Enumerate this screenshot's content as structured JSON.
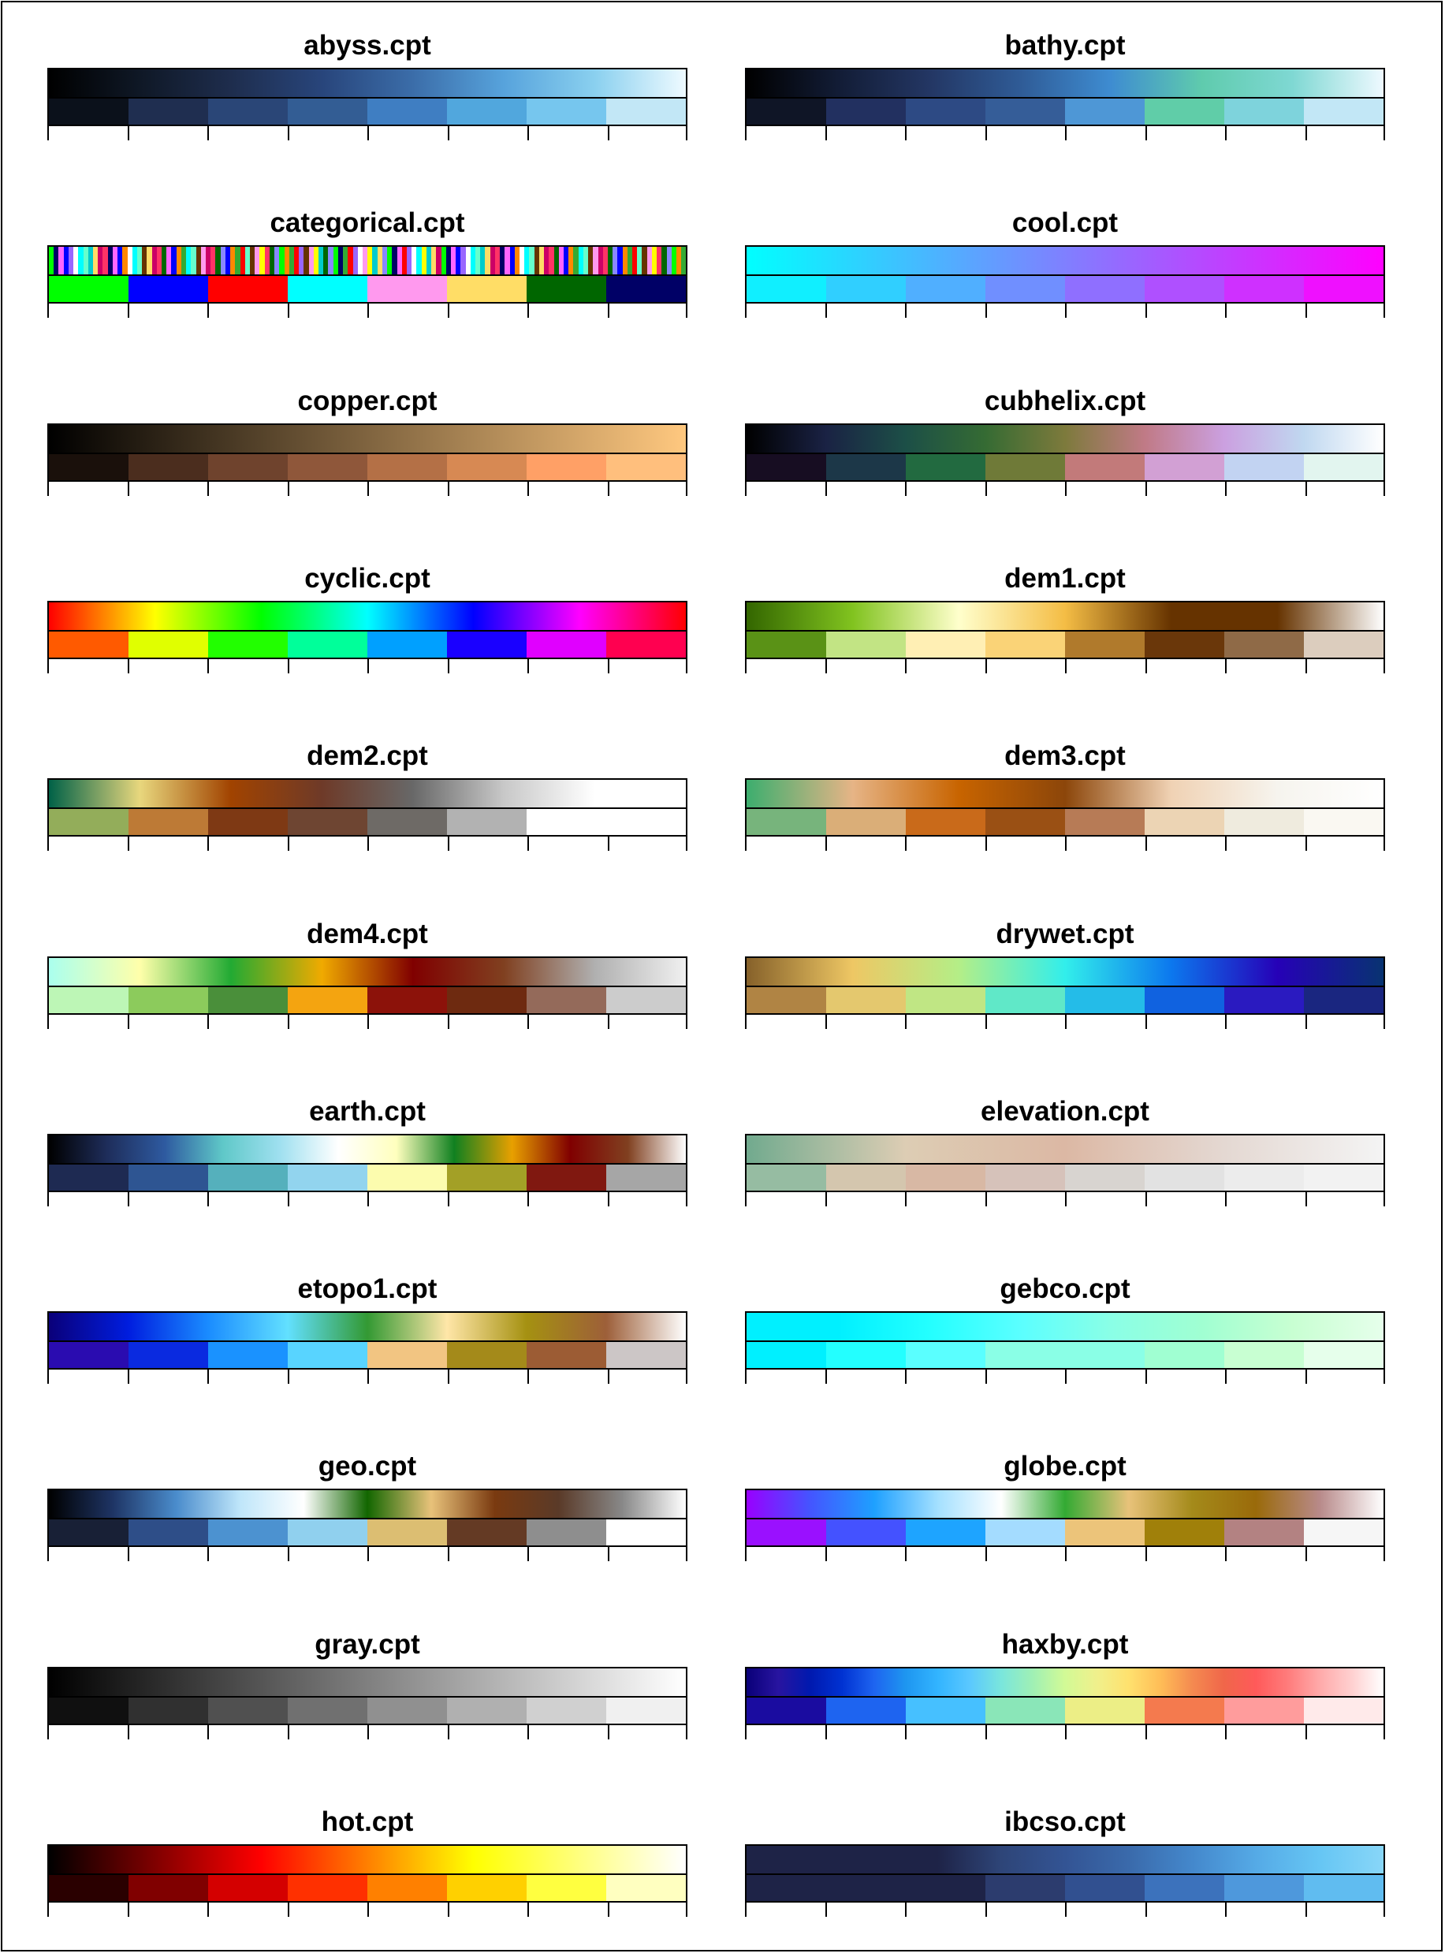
{
  "palettes": [
    {
      "name": "abyss.cpt",
      "gradient": [
        "#000000",
        "#0f1826",
        "#1e2d4d",
        "#28457b",
        "#3b6da9",
        "#57a3dc",
        "#8ad0ef",
        "#eefaff"
      ],
      "discrete": [
        "#0b111b",
        "#1f2e50",
        "#2a4677",
        "#335d94",
        "#3f7ec2",
        "#51a7dd",
        "#76c6ee",
        "#c2e7f6"
      ]
    },
    {
      "name": "bathy.cpt",
      "gradient": [
        "#000000",
        "#121c35",
        "#233663",
        "#2f5b96",
        "#3e8cd1",
        "#5fcbad",
        "#7fd8d3",
        "#eef9ff"
      ],
      "discrete": [
        "#0f1526",
        "#223060",
        "#2d4a84",
        "#355d98",
        "#4e97d6",
        "#60cda8",
        "#7ed3dc",
        "#c2e7f6"
      ]
    },
    {
      "name": "categorical.cpt",
      "gradient": [],
      "stripes": [
        "#00ff00",
        "#0000ff",
        "#ff0000",
        "#00ffff",
        "#ff99ee",
        "#ffdd66",
        "#006600",
        "#000066",
        "#ff8800",
        "#9966ff",
        "#66ffcc",
        "#ffff00",
        "#cc0066",
        "#8888ff",
        "#ff66ff",
        "#33aa33",
        "#ffffff",
        "#663300",
        "#00cccc",
        "#ff3366"
      ],
      "discrete": [
        "#00ff00",
        "#0000ff",
        "#ff0000",
        "#00ffff",
        "#ff99ee",
        "#ffdd66",
        "#006600",
        "#000066"
      ]
    },
    {
      "name": "cool.cpt",
      "gradient": [
        "#00ffff",
        "#ff00ff"
      ],
      "discrete": [
        "#10efff",
        "#30cfff",
        "#50afff",
        "#708fff",
        "#8f6fff",
        "#af50ff",
        "#cf30ff",
        "#ef10ff"
      ]
    },
    {
      "name": "copper.cpt",
      "gradient": [
        "#000000",
        "#ffc87f"
      ],
      "discrete": [
        "#1a100b",
        "#4b2d1e",
        "#6f432d",
        "#8f573a",
        "#b47046",
        "#d78953",
        "#ffa066",
        "#ffbf7d"
      ]
    },
    {
      "name": "cubhelix.cpt",
      "gradient": [
        "#000000",
        "#1a2244",
        "#1c4f47",
        "#356b33",
        "#7d7a3c",
        "#c07a86",
        "#cba0e0",
        "#c0d8f0",
        "#ffffff"
      ],
      "discrete": [
        "#170d22",
        "#1c3748",
        "#226a40",
        "#6f7a38",
        "#c27a7a",
        "#d2a0d4",
        "#c2d3f2",
        "#e2f5ef"
      ]
    },
    {
      "name": "cyclic.cpt",
      "gradient": [
        "#ff0000",
        "#ffff00",
        "#00ff00",
        "#00ffff",
        "#0000ff",
        "#ff00ff",
        "#ff0000"
      ],
      "discrete": [
        "#ff5a00",
        "#e0ff00",
        "#22ff00",
        "#00ff9a",
        "#00a0ff",
        "#1a00ff",
        "#e000ff",
        "#ff0050"
      ]
    },
    {
      "name": "dem1.cpt",
      "gradient": [
        "#336600",
        "#81c31f",
        "#ffffcc",
        "#f4bd45",
        "#663300",
        "#663300",
        "#ffffff"
      ],
      "discrete": [
        "#5a9216",
        "#c2e484",
        "#ffefb4",
        "#fad377",
        "#b07a2c",
        "#6a370a",
        "#8f6a47",
        "#dccdbe"
      ]
    },
    {
      "name": "dem2.cpt",
      "gradient": [
        "#006147",
        "#e8d77d",
        "#a14300",
        "#6e3a28",
        "#686868",
        "#c8c8c8",
        "#ffffff",
        "#ffffff"
      ],
      "discrete": [
        "#93ad5a",
        "#bd7a36",
        "#7e3914",
        "#6e4532",
        "#6e6a66",
        "#b2b2b2",
        "#ffffff",
        "#ffffff"
      ]
    },
    {
      "name": "dem3.cpt",
      "gradient": [
        "#3cae6e",
        "#e6b486",
        "#c86400",
        "#8c460a",
        "#f0d2b4",
        "#f6f4ee",
        "#ffffff"
      ],
      "discrete": [
        "#77b47c",
        "#daae78",
        "#c96a1a",
        "#9a5014",
        "#b77b56",
        "#ecd4b4",
        "#efebde",
        "#faf8f2"
      ]
    },
    {
      "name": "dem4.cpt",
      "gradient": [
        "#aaffee",
        "#ffffaa",
        "#22aa33",
        "#f0aa00",
        "#800000",
        "#804020",
        "#b0b0b0",
        "#f0f0f0"
      ],
      "discrete": [
        "#bdf6b6",
        "#8ccb5c",
        "#4a8f3a",
        "#f4a410",
        "#8c120a",
        "#6e2a10",
        "#946a5a",
        "#cccccc"
      ]
    },
    {
      "name": "drywet.cpt",
      "gradient": [
        "#86612a",
        "#eec764",
        "#b4ee87",
        "#32eeeb",
        "#0c78ee",
        "#2601b7",
        "#083371"
      ],
      "discrete": [
        "#b08444",
        "#e4c86e",
        "#c0e684",
        "#60e8c8",
        "#24bce8",
        "#1062e0",
        "#2a1ac0",
        "#1a2680"
      ]
    },
    {
      "name": "earth.cpt",
      "gradient": [
        "#000000",
        "#1e2d5a",
        "#2e5aa0",
        "#5fc8c8",
        "#a0e0f0",
        "#ffffff",
        "#ffffbe",
        "#108020",
        "#e8a000",
        "#800000",
        "#804020",
        "#ffffff"
      ],
      "discrete": [
        "#1e2a52",
        "#2e5592",
        "#55b0bc",
        "#92d4ee",
        "#fcfcae",
        "#a3a026",
        "#801810",
        "#a6a6a6"
      ]
    },
    {
      "name": "elevation.cpt",
      "gradient": [
        "#71aa8e",
        "#ddcdb4",
        "#dcb8a4",
        "#e4d8d2",
        "#f4f4f4"
      ],
      "discrete": [
        "#96bca2",
        "#d4c6ae",
        "#d8b8a4",
        "#d6c2ba",
        "#d8d4d0",
        "#e2e2e2",
        "#ececec",
        "#f2f2f2"
      ]
    },
    {
      "name": "etopo1.cpt",
      "gradient": [
        "#0a0079",
        "#001ddf",
        "#1a8cff",
        "#62e0ff",
        "#339933",
        "#ffe6a8",
        "#a59111",
        "#9d5f39",
        "#ffffff"
      ],
      "discrete": [
        "#2a0cb0",
        "#0a2ae0",
        "#1a92ff",
        "#58d4ff",
        "#f2c582",
        "#a48a1a",
        "#9c5c34",
        "#ccc6c6"
      ]
    },
    {
      "name": "gebco.cpt",
      "gradient": [
        "#00f0ff",
        "#00f0ff",
        "#23ffff",
        "#5affff",
        "#8affe6",
        "#a0ffd2",
        "#c8ffd2",
        "#e6ffeb"
      ],
      "discrete": [
        "#00f0ff",
        "#23ffff",
        "#5affff",
        "#8affe6",
        "#8affe6",
        "#a0ffd2",
        "#c8ffd2",
        "#e6ffeb"
      ]
    },
    {
      "name": "geo.cpt",
      "gradient": [
        "#000000",
        "#1e3464",
        "#4a8ccc",
        "#bfe6fa",
        "#ffffff",
        "#126600",
        "#e8c27a",
        "#7a3a10",
        "#5a3a28",
        "#888888",
        "#ffffff"
      ],
      "discrete": [
        "#182036",
        "#2e4e88",
        "#4c92d0",
        "#90d0ee",
        "#dcbe72",
        "#643a24",
        "#8e8e8e",
        "#ffffff"
      ]
    },
    {
      "name": "globe.cpt",
      "gradient": [
        "#9900ff",
        "#4455ff",
        "#1ea0ff",
        "#a4e0ff",
        "#ffffff",
        "#33aa33",
        "#e8c27a",
        "#a48a1a",
        "#9a6a0a",
        "#b88a8a",
        "#ffffff"
      ],
      "discrete": [
        "#9a10ff",
        "#4452ff",
        "#1ea4ff",
        "#a4dcff",
        "#ecc47a",
        "#a0800a",
        "#b38282",
        "#f6f6f6"
      ]
    },
    {
      "name": "gray.cpt",
      "gradient": [
        "#000000",
        "#ffffff"
      ],
      "discrete": [
        "#101010",
        "#303030",
        "#505050",
        "#707070",
        "#909090",
        "#b0b0b0",
        "#d0d0d0",
        "#f0f0f0"
      ]
    },
    {
      "name": "haxby.cpt",
      "gradient": [
        "#0a0079",
        "#2814a0",
        "#0019af",
        "#0032d2",
        "#1e64f0",
        "#1e96f0",
        "#32b4ff",
        "#5ac8ff",
        "#7ae6dc",
        "#a0f0b4",
        "#d2fa96",
        "#f0f08c",
        "#ffe16e",
        "#ffbd57",
        "#f48a50",
        "#f0664a",
        "#ff5a5a",
        "#ff7c7c",
        "#ffaaaa",
        "#ffd0d0",
        "#ffffff"
      ],
      "discrete": [
        "#1a0ca0",
        "#1e64f0",
        "#46c0ff",
        "#8ae6b8",
        "#ecee86",
        "#f47a4e",
        "#ff9c9c",
        "#ffeaea"
      ]
    },
    {
      "name": "hot.cpt",
      "gradient": [
        "#000000",
        "#ff0000",
        "#ffff00",
        "#ffffff"
      ],
      "discrete": [
        "#2a0000",
        "#800000",
        "#d40000",
        "#ff3000",
        "#ff8000",
        "#ffd000",
        "#ffff40",
        "#ffffc0"
      ]
    },
    {
      "name": "ibcso.cpt",
      "gradient": [
        "#1e2347",
        "#1e2347",
        "#1e2347",
        "#1e2347",
        "#2e4578",
        "#335494",
        "#3a6aab",
        "#4488cc",
        "#55aae6",
        "#66c6f4",
        "#88d6f8"
      ],
      "discrete": [
        "#1e2347",
        "#1e2347",
        "#1e2347",
        "#2c3c6e",
        "#315090",
        "#3c72bc",
        "#4e98dc",
        "#60bcf0"
      ]
    }
  ]
}
